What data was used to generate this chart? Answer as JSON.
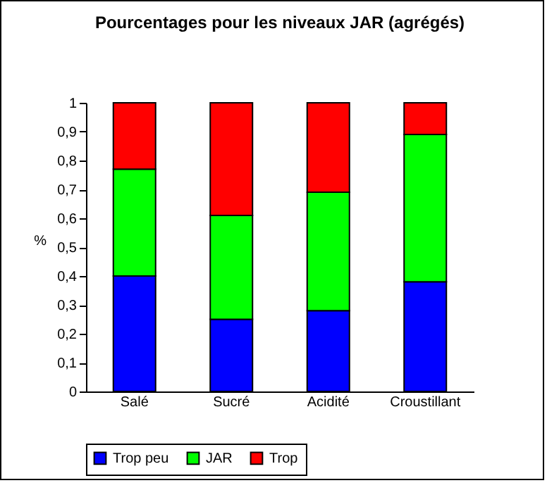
{
  "chart_data": {
    "type": "bar",
    "title": "Pourcentages pour les niveaux JAR (agrégés)",
    "ylabel": "%",
    "stacked": true,
    "categories": [
      "Salé",
      "Sucré",
      "Acidité",
      "Croustillant"
    ],
    "series": [
      {
        "name": "Trop peu",
        "color": "#0000ff",
        "values": [
          0.4,
          0.25,
          0.28,
          0.38
        ]
      },
      {
        "name": "JAR",
        "color": "#00ff00",
        "values": [
          0.37,
          0.36,
          0.41,
          0.51
        ]
      },
      {
        "name": "Trop",
        "color": "#ff0000",
        "values": [
          0.23,
          0.39,
          0.31,
          0.11
        ]
      }
    ],
    "ylim": [
      0,
      1
    ],
    "yticks": [
      0,
      {
        "value": 0.1,
        "label": "0,1"
      },
      {
        "value": 0.2,
        "label": "0,2"
      },
      {
        "value": 0.3,
        "label": "0,3"
      },
      {
        "value": 0.4,
        "label": "0,4"
      },
      {
        "value": 0.5,
        "label": "0,5"
      },
      {
        "value": 0.6,
        "label": "0,6"
      },
      {
        "value": 0.7,
        "label": "0,7"
      },
      {
        "value": 0.8,
        "label": "0,8"
      },
      {
        "value": 0.9,
        "label": "0,9"
      },
      1
    ],
    "grid": false,
    "legend": "bottom"
  }
}
